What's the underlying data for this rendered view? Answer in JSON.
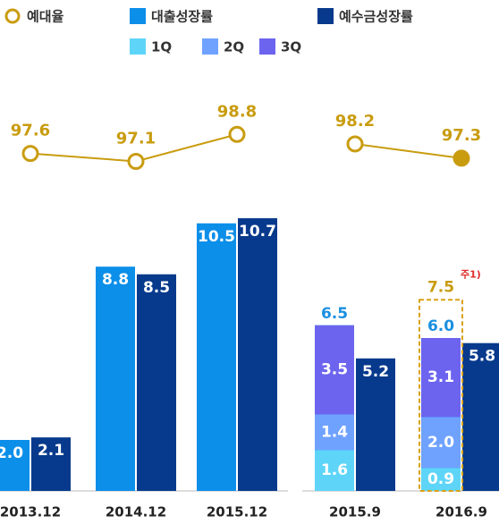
{
  "chart_data": {
    "type": "bar",
    "categories": [
      "2013.12",
      "2014.12",
      "2015.12",
      "2015.9",
      "2016.9"
    ],
    "series": [
      {
        "name": "예대율",
        "type": "line",
        "axis": "y2",
        "color": "#c99c10",
        "values": [
          97.6,
          97.1,
          98.8,
          98.2,
          97.3
        ]
      },
      {
        "name": "대출성장률",
        "color": "#0c8fe9",
        "values": [
          2.0,
          8.8,
          10.5,
          6.5,
          6.0
        ],
        "value_labels": [
          "2.0",
          "8.8",
          "10.5",
          "6.5",
          "6.0"
        ]
      },
      {
        "name": "예수금성장률",
        "color": "#073a8c",
        "values": [
          2.1,
          8.5,
          10.7,
          5.2,
          5.8
        ],
        "value_labels": [
          "2.1",
          "8.5",
          "10.7",
          "5.2",
          "5.8"
        ]
      },
      {
        "name": "1Q",
        "color": "#5ed5f8",
        "values": [
          null,
          null,
          null,
          1.6,
          0.9
        ],
        "value_labels": [
          null,
          null,
          null,
          "1.6",
          "0.9"
        ]
      },
      {
        "name": "2Q",
        "color": "#6fa2ff",
        "values": [
          null,
          null,
          null,
          1.4,
          2.0
        ],
        "value_labels": [
          null,
          null,
          null,
          "1.4",
          "2.0"
        ]
      },
      {
        "name": "3Q",
        "color": "#6c64ef",
        "values": [
          null,
          null,
          null,
          3.5,
          3.1
        ],
        "value_labels": [
          null,
          null,
          null,
          "3.5",
          "3.1"
        ]
      }
    ],
    "annotation": {
      "value": 7.5,
      "note": "주1)"
    },
    "ylim": [
      0,
      12
    ],
    "y2lim": [
      96,
      100
    ]
  }
}
